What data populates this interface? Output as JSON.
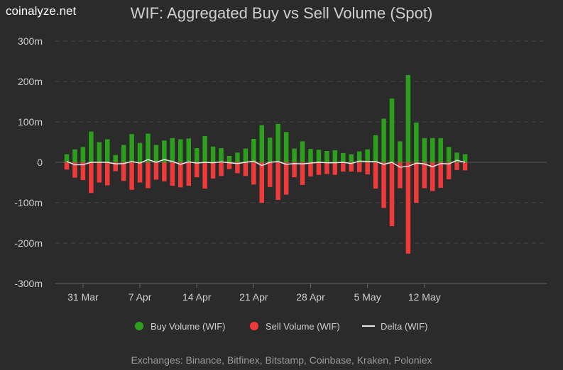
{
  "brand": "coinalyze.net",
  "chart_data": {
    "type": "bar",
    "title": "WIF: Aggregated Buy vs Sell Volume (Spot)",
    "y_ticks": [
      "300m",
      "200m",
      "100m",
      "0",
      "-100m",
      "-200m",
      "-300m"
    ],
    "ylim": [
      -300,
      300
    ],
    "y_unit": "m",
    "x_tick_labels": [
      {
        "label": "31 Mar",
        "index": 2
      },
      {
        "label": "7 Apr",
        "index": 9
      },
      {
        "label": "14 Apr",
        "index": 16
      },
      {
        "label": "21 Apr",
        "index": 23
      },
      {
        "label": "28 Apr",
        "index": 30
      },
      {
        "label": "5 May",
        "index": 37
      },
      {
        "label": "12 May",
        "index": 44
      }
    ],
    "categories_count": 50,
    "series": [
      {
        "name": "Buy Volume (WIF)",
        "color": "#2ca01c",
        "values": [
          20,
          32,
          38,
          76,
          50,
          57,
          18,
          43,
          70,
          48,
          71,
          43,
          54,
          60,
          57,
          59,
          35,
          65,
          39,
          35,
          16,
          24,
          34,
          58,
          92,
          61,
          95,
          75,
          34,
          52,
          33,
          31,
          28,
          30,
          23,
          20,
          27,
          32,
          67,
          108,
          158,
          52,
          216,
          98,
          60,
          60,
          60,
          38,
          24,
          20
        ]
      },
      {
        "name": "Sell Volume (WIF)",
        "color": "#f03a3a",
        "values": [
          -18,
          -38,
          -44,
          -76,
          -50,
          -57,
          -22,
          -46,
          -68,
          -50,
          -64,
          -43,
          -47,
          -58,
          -62,
          -58,
          -37,
          -65,
          -40,
          -34,
          -17,
          -27,
          -34,
          -55,
          -100,
          -61,
          -93,
          -80,
          -37,
          -56,
          -35,
          -31,
          -29,
          -31,
          -23,
          -23,
          -24,
          -30,
          -65,
          -113,
          -158,
          -64,
          -226,
          -100,
          -64,
          -71,
          -63,
          -42,
          -19,
          -20
        ]
      },
      {
        "name": "Delta (WIF)",
        "color": "#e8e8e8",
        "values": [
          2,
          -6,
          -6,
          0,
          0,
          0,
          -4,
          -3,
          2,
          -2,
          7,
          0,
          7,
          2,
          -5,
          1,
          -2,
          0,
          -1,
          1,
          -1,
          -3,
          0,
          3,
          -8,
          0,
          2,
          -5,
          -3,
          -4,
          -2,
          0,
          -1,
          -1,
          0,
          -3,
          3,
          2,
          2,
          -5,
          0,
          -12,
          -10,
          -2,
          -4,
          -11,
          -3,
          -4,
          5,
          0
        ]
      }
    ],
    "legend_position": "bottom",
    "grid": true
  },
  "footer": "Exchanges: Binance, Bitfinex, Bitstamp, Coinbase, Kraken, Poloniex"
}
